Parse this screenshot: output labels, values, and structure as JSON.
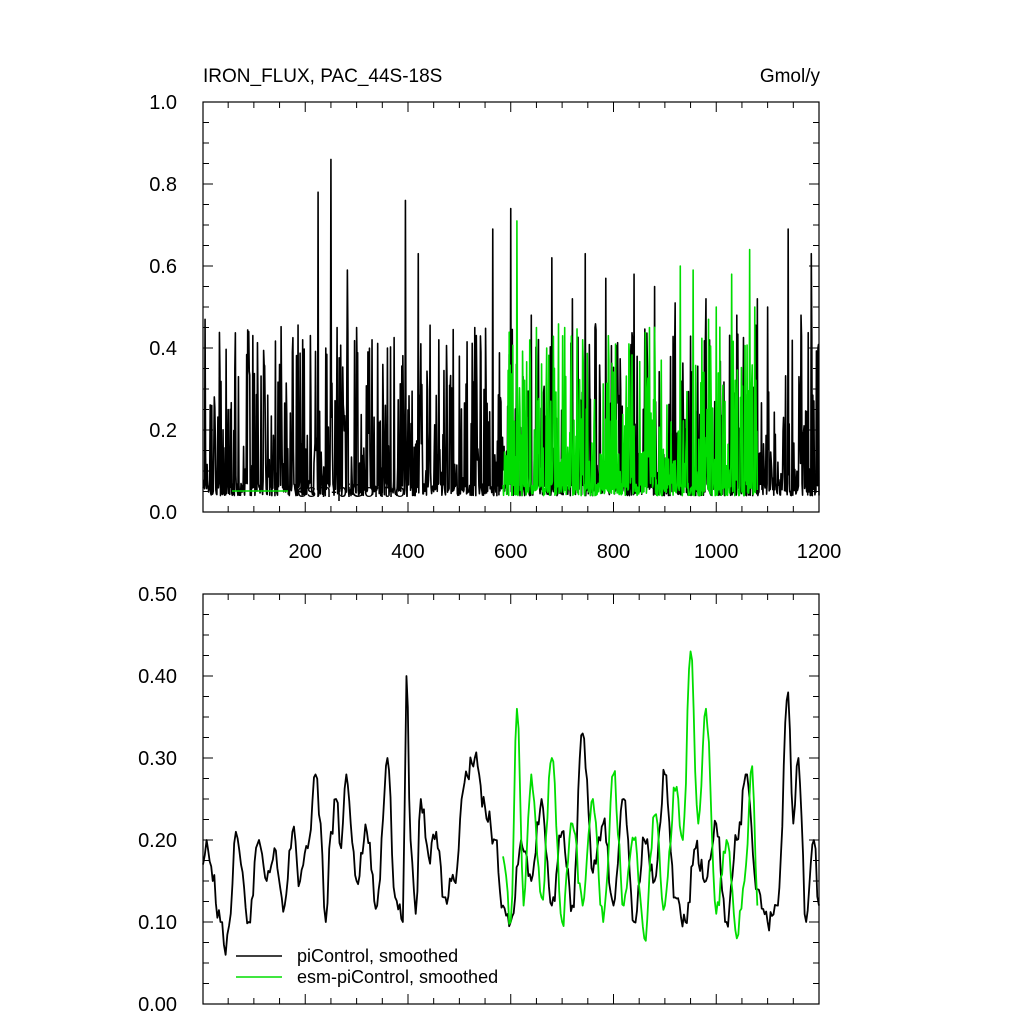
{
  "chart_data": [
    {
      "type": "line",
      "title": "IRON_FLUX, PAC_44S-18S",
      "units": "Gmol/y",
      "xlim": [
        1,
        1200
      ],
      "ylim": [
        0.0,
        1.0
      ],
      "x_ticks": [
        200,
        400,
        600,
        800,
        1000,
        1200
      ],
      "x_tick_labels": [
        "200",
        "400",
        "600",
        "800",
        "1000",
        "1200"
      ],
      "y_ticks": [
        0.0,
        0.2,
        0.4,
        0.6,
        0.8,
        1.0
      ],
      "y_tick_labels": [
        "0.0",
        "0.2",
        "0.4",
        "0.6",
        "0.8",
        "1.0"
      ],
      "series": [
        {
          "name": "piControl",
          "color": "#000000",
          "x_range": [
            1,
            1200
          ],
          "baseline": 0.04,
          "peaks": [
            [
              5,
              0.47
            ],
            [
              18,
              0.26
            ],
            [
              50,
              0.25
            ],
            [
              70,
              0.33
            ],
            [
              90,
              0.44
            ],
            [
              120,
              0.36
            ],
            [
              150,
              0.36
            ],
            [
              175,
              0.39
            ],
            [
              195,
              0.42
            ],
            [
              225,
              0.78
            ],
            [
              240,
              0.4
            ],
            [
              250,
              0.86
            ],
            [
              262,
              0.45
            ],
            [
              282,
              0.59
            ],
            [
              300,
              0.45
            ],
            [
              330,
              0.42
            ],
            [
              360,
              0.4
            ],
            [
              395,
              0.76
            ],
            [
              420,
              0.63
            ],
            [
              460,
              0.42
            ],
            [
              500,
              0.38
            ],
            [
              530,
              0.45
            ],
            [
              565,
              0.69
            ],
            [
              600,
              0.74
            ],
            [
              640,
              0.48
            ],
            [
              680,
              0.62
            ],
            [
              720,
              0.52
            ],
            [
              745,
              0.63
            ],
            [
              785,
              0.57
            ],
            [
              840,
              0.58
            ],
            [
              880,
              0.55
            ],
            [
              920,
              0.51
            ],
            [
              980,
              0.52
            ],
            [
              1040,
              0.48
            ],
            [
              1080,
              0.52
            ],
            [
              1100,
              0.5
            ],
            [
              1140,
              0.69
            ],
            [
              1165,
              0.48
            ],
            [
              1185,
              0.63
            ],
            [
              1198,
              0.4
            ]
          ]
        },
        {
          "name": "esm-piControl",
          "color": "#00dd00",
          "x_range": [
            585,
            1080
          ],
          "baseline": 0.04,
          "peaks": [
            [
              612,
              0.71
            ],
            [
              650,
              0.45
            ],
            [
              670,
              0.4
            ],
            [
              705,
              0.45
            ],
            [
              740,
              0.42
            ],
            [
              790,
              0.43
            ],
            [
              830,
              0.41
            ],
            [
              870,
              0.45
            ],
            [
              930,
              0.6
            ],
            [
              955,
              0.59
            ],
            [
              985,
              0.47
            ],
            [
              1000,
              0.5
            ],
            [
              1030,
              0.58
            ],
            [
              1065,
              0.64
            ],
            [
              1075,
              0.5
            ]
          ]
        }
      ],
      "legend_overlay_text": [
        "esm-piControl"
      ]
    },
    {
      "type": "line",
      "xlim": [
        1,
        1200
      ],
      "ylim": [
        0.0,
        0.5
      ],
      "x_ticks": [
        200,
        400,
        600,
        800,
        1000,
        1200
      ],
      "y_ticks": [
        0.0,
        0.1,
        0.2,
        0.3,
        0.4,
        0.5
      ],
      "y_tick_labels": [
        "0.00",
        "0.10",
        "0.20",
        "0.30",
        "0.40",
        "0.50"
      ],
      "series": [
        {
          "name": "piControl, smoothed",
          "color": "#000000",
          "x": [
            1,
            8,
            20,
            35,
            45,
            55,
            65,
            75,
            90,
            110,
            125,
            140,
            160,
            175,
            190,
            205,
            220,
            230,
            240,
            250,
            260,
            270,
            280,
            300,
            320,
            340,
            360,
            375,
            390,
            397,
            405,
            415,
            425,
            440,
            455,
            470,
            490,
            510,
            530,
            550,
            570,
            585,
            600,
            620,
            640,
            660,
            680,
            700,
            720,
            740,
            760,
            780,
            800,
            820,
            840,
            860,
            880,
            900,
            920,
            940,
            960,
            980,
            1000,
            1020,
            1040,
            1060,
            1080,
            1100,
            1120,
            1140,
            1150,
            1160,
            1175,
            1190,
            1200
          ],
          "y": [
            0.17,
            0.2,
            0.15,
            0.1,
            0.06,
            0.11,
            0.21,
            0.17,
            0.1,
            0.2,
            0.15,
            0.19,
            0.12,
            0.21,
            0.15,
            0.19,
            0.28,
            0.22,
            0.1,
            0.21,
            0.25,
            0.19,
            0.28,
            0.15,
            0.21,
            0.12,
            0.3,
            0.13,
            0.1,
            0.4,
            0.2,
            0.11,
            0.25,
            0.18,
            0.21,
            0.13,
            0.15,
            0.27,
            0.3,
            0.24,
            0.2,
            0.12,
            0.1,
            0.2,
            0.15,
            0.25,
            0.12,
            0.21,
            0.12,
            0.33,
            0.16,
            0.22,
            0.12,
            0.25,
            0.1,
            0.2,
            0.15,
            0.28,
            0.13,
            0.1,
            0.19,
            0.15,
            0.22,
            0.1,
            0.2,
            0.28,
            0.14,
            0.1,
            0.12,
            0.38,
            0.22,
            0.3,
            0.1,
            0.2,
            0.12
          ]
        },
        {
          "name": "esm-piControl, smoothed",
          "color": "#00dd00",
          "x": [
            585,
            600,
            612,
            625,
            640,
            660,
            680,
            700,
            720,
            740,
            760,
            780,
            800,
            820,
            840,
            860,
            880,
            900,
            920,
            935,
            950,
            965,
            980,
            1000,
            1020,
            1040,
            1055,
            1070,
            1080
          ],
          "y": [
            0.18,
            0.1,
            0.36,
            0.12,
            0.28,
            0.13,
            0.3,
            0.1,
            0.22,
            0.12,
            0.25,
            0.1,
            0.28,
            0.12,
            0.2,
            0.08,
            0.23,
            0.12,
            0.26,
            0.2,
            0.43,
            0.22,
            0.36,
            0.11,
            0.2,
            0.08,
            0.15,
            0.29,
            0.12
          ]
        }
      ],
      "legend_position": "bottom-left"
    }
  ]
}
